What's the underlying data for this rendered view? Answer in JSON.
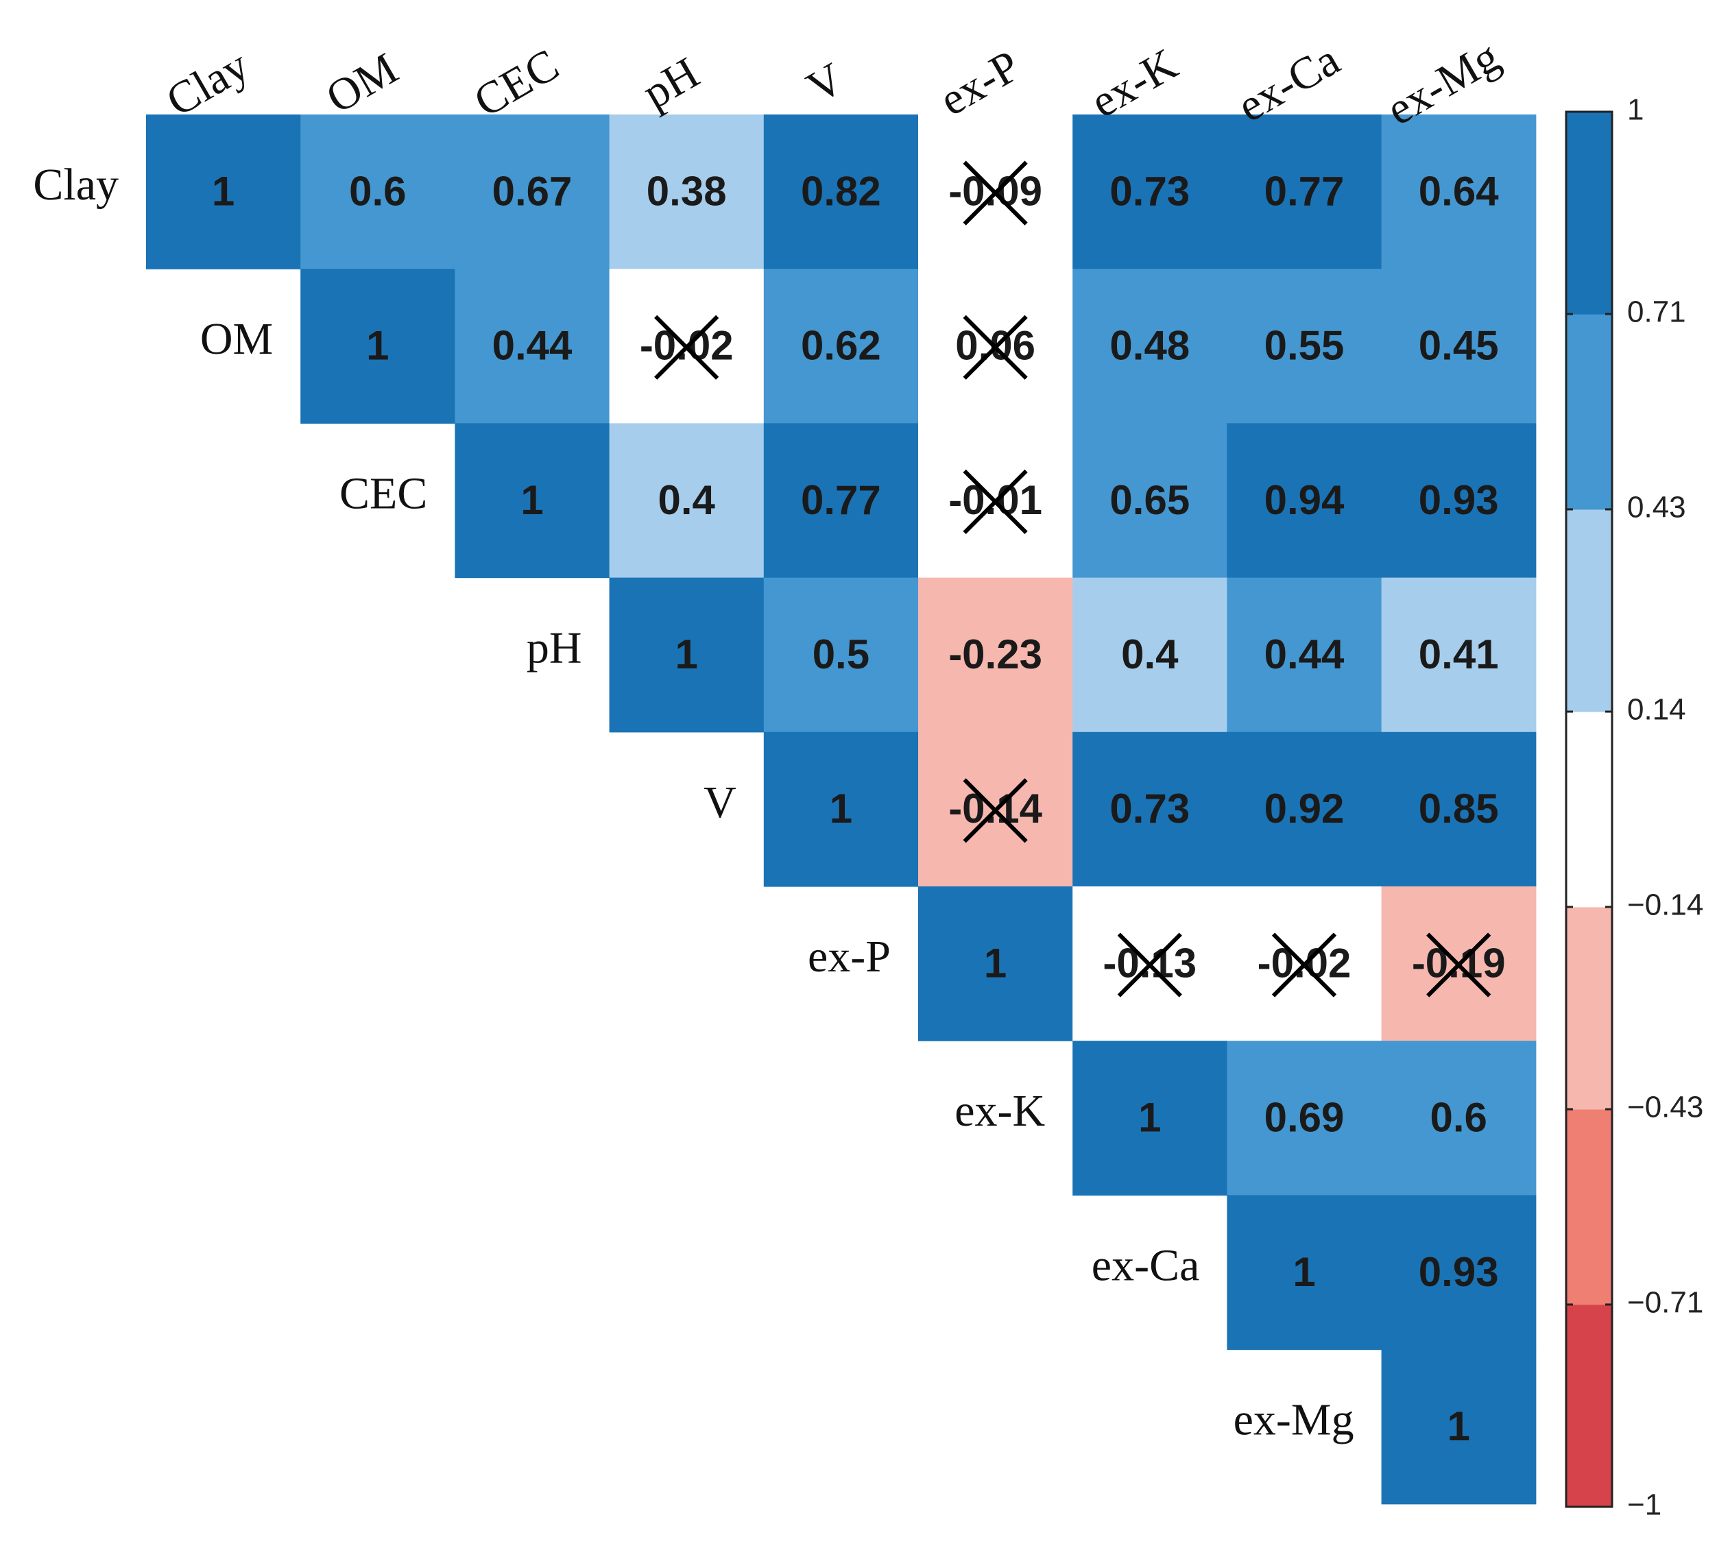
{
  "chart_data": {
    "type": "heatmap",
    "variables": [
      "Clay",
      "OM",
      "CEC",
      "pH",
      "V",
      "ex-P",
      "ex-K",
      "ex-Ca",
      "ex-Mg"
    ],
    "cells": [
      {
        "row": "Clay",
        "col": "Clay",
        "value": 1,
        "label": "1",
        "significant": true
      },
      {
        "row": "Clay",
        "col": "OM",
        "value": 0.6,
        "label": "0.6",
        "significant": true
      },
      {
        "row": "Clay",
        "col": "CEC",
        "value": 0.67,
        "label": "0.67",
        "significant": true
      },
      {
        "row": "Clay",
        "col": "pH",
        "value": 0.38,
        "label": "0.38",
        "significant": true
      },
      {
        "row": "Clay",
        "col": "V",
        "value": 0.82,
        "label": "0.82",
        "significant": true
      },
      {
        "row": "Clay",
        "col": "ex-P",
        "value": -0.09,
        "label": "-0.09",
        "significant": false
      },
      {
        "row": "Clay",
        "col": "ex-K",
        "value": 0.73,
        "label": "0.73",
        "significant": true
      },
      {
        "row": "Clay",
        "col": "ex-Ca",
        "value": 0.77,
        "label": "0.77",
        "significant": true
      },
      {
        "row": "Clay",
        "col": "ex-Mg",
        "value": 0.64,
        "label": "0.64",
        "significant": true
      },
      {
        "row": "OM",
        "col": "OM",
        "value": 1,
        "label": "1",
        "significant": true
      },
      {
        "row": "OM",
        "col": "CEC",
        "value": 0.44,
        "label": "0.44",
        "significant": true
      },
      {
        "row": "OM",
        "col": "pH",
        "value": -0.02,
        "label": "-0.02",
        "significant": false
      },
      {
        "row": "OM",
        "col": "V",
        "value": 0.62,
        "label": "0.62",
        "significant": true
      },
      {
        "row": "OM",
        "col": "ex-P",
        "value": 0.06,
        "label": "0.06",
        "significant": false
      },
      {
        "row": "OM",
        "col": "ex-K",
        "value": 0.48,
        "label": "0.48",
        "significant": true
      },
      {
        "row": "OM",
        "col": "ex-Ca",
        "value": 0.55,
        "label": "0.55",
        "significant": true
      },
      {
        "row": "OM",
        "col": "ex-Mg",
        "value": 0.45,
        "label": "0.45",
        "significant": true
      },
      {
        "row": "CEC",
        "col": "CEC",
        "value": 1,
        "label": "1",
        "significant": true
      },
      {
        "row": "CEC",
        "col": "pH",
        "value": 0.4,
        "label": "0.4",
        "significant": true
      },
      {
        "row": "CEC",
        "col": "V",
        "value": 0.77,
        "label": "0.77",
        "significant": true
      },
      {
        "row": "CEC",
        "col": "ex-P",
        "value": -0.01,
        "label": "-0.01",
        "significant": false
      },
      {
        "row": "CEC",
        "col": "ex-K",
        "value": 0.65,
        "label": "0.65",
        "significant": true
      },
      {
        "row": "CEC",
        "col": "ex-Ca",
        "value": 0.94,
        "label": "0.94",
        "significant": true
      },
      {
        "row": "CEC",
        "col": "ex-Mg",
        "value": 0.93,
        "label": "0.93",
        "significant": true
      },
      {
        "row": "pH",
        "col": "pH",
        "value": 1,
        "label": "1",
        "significant": true
      },
      {
        "row": "pH",
        "col": "V",
        "value": 0.5,
        "label": "0.5",
        "significant": true
      },
      {
        "row": "pH",
        "col": "ex-P",
        "value": -0.23,
        "label": "-0.23",
        "significant": true
      },
      {
        "row": "pH",
        "col": "ex-K",
        "value": 0.4,
        "label": "0.4",
        "significant": true
      },
      {
        "row": "pH",
        "col": "ex-Ca",
        "value": 0.44,
        "label": "0.44",
        "significant": true
      },
      {
        "row": "pH",
        "col": "ex-Mg",
        "value": 0.41,
        "label": "0.41",
        "significant": true
      },
      {
        "row": "V",
        "col": "V",
        "value": 1,
        "label": "1",
        "significant": true
      },
      {
        "row": "V",
        "col": "ex-P",
        "value": -0.14,
        "label": "-0.14",
        "significant": false
      },
      {
        "row": "V",
        "col": "ex-K",
        "value": 0.73,
        "label": "0.73",
        "significant": true
      },
      {
        "row": "V",
        "col": "ex-Ca",
        "value": 0.92,
        "label": "0.92",
        "significant": true
      },
      {
        "row": "V",
        "col": "ex-Mg",
        "value": 0.85,
        "label": "0.85",
        "significant": true
      },
      {
        "row": "ex-P",
        "col": "ex-P",
        "value": 1,
        "label": "1",
        "significant": true
      },
      {
        "row": "ex-P",
        "col": "ex-K",
        "value": -0.13,
        "label": "-0.13",
        "significant": false
      },
      {
        "row": "ex-P",
        "col": "ex-Ca",
        "value": -0.02,
        "label": "-0.02",
        "significant": false
      },
      {
        "row": "ex-P",
        "col": "ex-Mg",
        "value": -0.19,
        "label": "-0.19",
        "significant": false
      },
      {
        "row": "ex-K",
        "col": "ex-K",
        "value": 1,
        "label": "1",
        "significant": true
      },
      {
        "row": "ex-K",
        "col": "ex-Ca",
        "value": 0.69,
        "label": "0.69",
        "significant": true
      },
      {
        "row": "ex-K",
        "col": "ex-Mg",
        "value": 0.6,
        "label": "0.6",
        "significant": true
      },
      {
        "row": "ex-Ca",
        "col": "ex-Ca",
        "value": 1,
        "label": "1",
        "significant": true
      },
      {
        "row": "ex-Ca",
        "col": "ex-Mg",
        "value": 0.93,
        "label": "0.93",
        "significant": true
      },
      {
        "row": "ex-Mg",
        "col": "ex-Mg",
        "value": 1,
        "label": "1",
        "significant": true
      }
    ],
    "colorbar": {
      "range": [
        -1,
        1
      ],
      "breaks": [
        -1,
        -0.71,
        -0.43,
        -0.14,
        0.14,
        0.43,
        0.71,
        1
      ],
      "tick_labels": [
        "−1",
        "−0.71",
        "−0.43",
        "−0.14",
        "0.14",
        "0.43",
        "0.71",
        "1"
      ],
      "bin_colors": [
        "#d6434a",
        "#ee7f72",
        "#f6b7ae",
        "#ffffff",
        "#a6cdeb",
        "#4497d0",
        "#1a73b5"
      ]
    },
    "cross_color": "#000000"
  }
}
